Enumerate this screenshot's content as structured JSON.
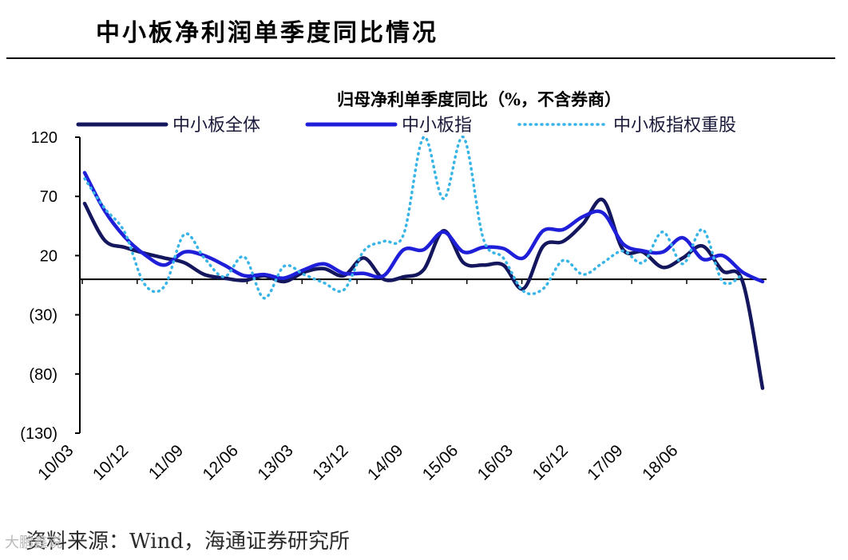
{
  "header": {
    "title": "中小板净利润单季度同比情况"
  },
  "footer": {
    "source": "资料来源：Wind，海通证券研究所",
    "watermark": "大鹏鑫说"
  },
  "chart_data": {
    "type": "line",
    "title": "归母净利单季度同比（%，不含券商）",
    "xlabel": "",
    "ylabel": "",
    "ylim": [
      -130,
      120
    ],
    "y_ticks": [
      120,
      70,
      20,
      -30,
      -80,
      -130
    ],
    "y_tick_labels": [
      "120",
      "70",
      "20",
      "(30)",
      "(80)",
      "(130)"
    ],
    "x_tick_labels": [
      "10/03",
      "10/12",
      "11/09",
      "12/06",
      "13/03",
      "13/12",
      "14/09",
      "15/06",
      "16/03",
      "16/12",
      "17/09",
      "18/06"
    ],
    "legend_position": "top",
    "series": [
      {
        "name": "中小板全体",
        "color": "#14165e",
        "style": "solid",
        "values": [
          64,
          33,
          27,
          22,
          18,
          14,
          4,
          1,
          -1,
          3,
          -2,
          6,
          9,
          3,
          18,
          0,
          2,
          8,
          41,
          14,
          12,
          12,
          -8,
          28,
          32,
          47,
          67,
          25,
          23,
          10,
          18,
          28,
          7,
          -2,
          -92
        ]
      },
      {
        "name": "中小板指",
        "color": "#1f1fd9",
        "style": "solid",
        "values": [
          90,
          58,
          36,
          21,
          12,
          23,
          20,
          12,
          3,
          4,
          1,
          8,
          13,
          5,
          5,
          3,
          25,
          25,
          40,
          23,
          27,
          26,
          18,
          41,
          42,
          53,
          56,
          30,
          24,
          23,
          35,
          17,
          20,
          6,
          -2
        ]
      },
      {
        "name": "中小板指权重股",
        "color": "#38b5e6",
        "style": "dotted",
        "values": [
          85,
          60,
          40,
          -4,
          -6,
          38,
          18,
          2,
          19,
          -16,
          11,
          4,
          -3,
          -9,
          24,
          32,
          38,
          120,
          68,
          120,
          34,
          18,
          -10,
          -8,
          16,
          4,
          14,
          24,
          14,
          40,
          13,
          42,
          -2,
          4,
          null
        ]
      }
    ]
  }
}
